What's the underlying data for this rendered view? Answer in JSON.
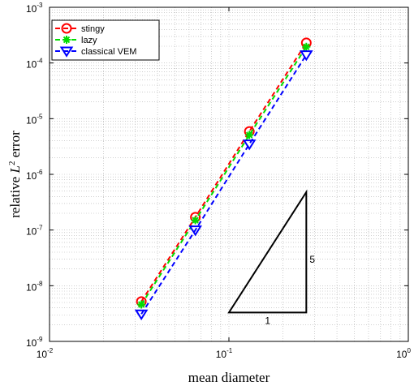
{
  "chart_data": {
    "type": "line",
    "xscale": "log",
    "yscale": "log",
    "xlabel": "mean diameter",
    "ylabel_main": "relative ",
    "ylabel_sym": "L",
    "ylabel_sup": "2",
    "ylabel_tail": " error",
    "xlim": [
      0.01,
      1
    ],
    "ylim": [
      1e-09,
      0.001
    ],
    "xticks": [
      {
        "base": "10",
        "exp": "-2"
      },
      {
        "base": "10",
        "exp": "-1"
      },
      {
        "base": "10",
        "exp": "0"
      }
    ],
    "yticks": [
      {
        "base": "10",
        "exp": "-9"
      },
      {
        "base": "10",
        "exp": "-8"
      },
      {
        "base": "10",
        "exp": "-7"
      },
      {
        "base": "10",
        "exp": "-6"
      },
      {
        "base": "10",
        "exp": "-5"
      },
      {
        "base": "10",
        "exp": "-4"
      },
      {
        "base": "10",
        "exp": "-3"
      }
    ],
    "grid": true,
    "legend_position": "top-left",
    "series": [
      {
        "name": "stingy",
        "color": "#ff0000",
        "marker": "circle",
        "x": [
          0.0325,
          0.065,
          0.13,
          0.27
        ],
        "y": [
          5.2e-09,
          1.7e-07,
          5.9e-06,
          0.00023
        ]
      },
      {
        "name": "lazy",
        "color": "#00dd00",
        "marker": "asterisk",
        "x": [
          0.0325,
          0.065,
          0.13,
          0.27
        ],
        "y": [
          4.6e-09,
          1.5e-07,
          5.1e-06,
          0.000195
        ]
      },
      {
        "name": "classical VEM",
        "color": "#0000ff",
        "marker": "triangle-down",
        "x": [
          0.0325,
          0.065,
          0.13,
          0.27
        ],
        "y": [
          3.1e-09,
          1e-07,
          3.5e-06,
          0.00014
        ]
      }
    ],
    "slope_triangle": {
      "x": [
        0.1,
        0.27
      ],
      "y": [
        3.3e-09,
        4.8e-07
      ],
      "run_label": "1",
      "rise_label": "5"
    }
  }
}
